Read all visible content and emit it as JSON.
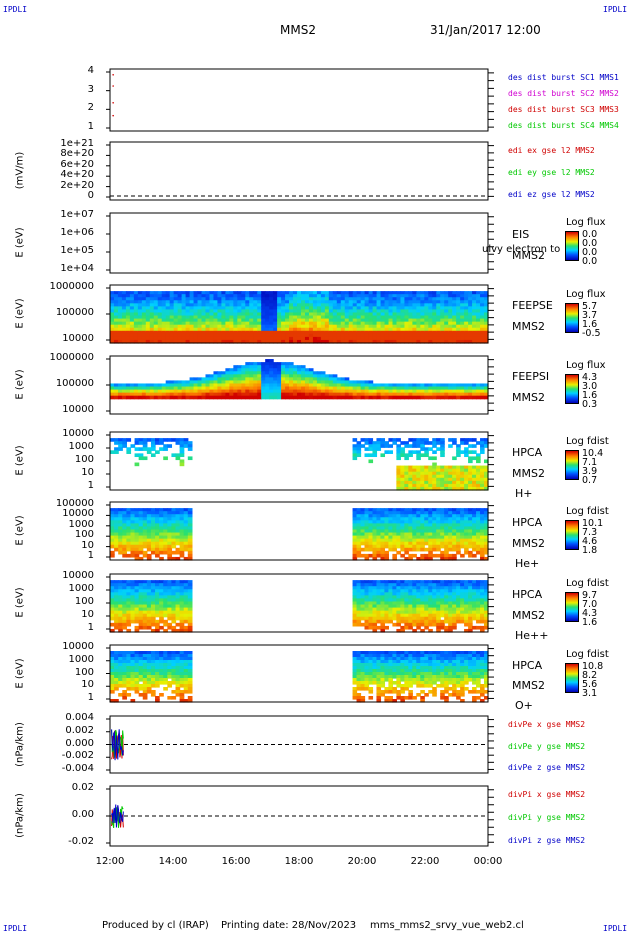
{
  "corners": {
    "tl": "IPDLI",
    "tr": "IPDLI",
    "bl": "IPDLI",
    "br": "IPDLI"
  },
  "header": {
    "mission": "MMS2",
    "datetime": "31/Jan/2017 12:00"
  },
  "x_axis": {
    "ticks": [
      "12:00",
      "14:00",
      "16:00",
      "18:00",
      "20:00",
      "22:00",
      "00:00"
    ]
  },
  "footer": {
    "produced": "Produced by cl (IRAP)",
    "printing": "Printing date: 28/Nov/2023",
    "script": "mms_mms2_srvy_vue_web2.cl"
  },
  "colors": {
    "red": "#d00000",
    "magenta": "#d000d0",
    "green": "#00c800",
    "blue": "#0000c8",
    "violet": "#6000c0"
  },
  "chart_data": [
    {
      "type": "scatter",
      "title": "",
      "ylabel": "",
      "ticks": [
        "4",
        "3",
        "2",
        "1"
      ],
      "legend": [
        {
          "name": "des dist burst SC1 MMS1",
          "color": "#0000c8"
        },
        {
          "name": "des dist burst SC2 MMS2",
          "color": "#d000d0"
        },
        {
          "name": "des dist burst SC3 MMS3",
          "color": "#d00000"
        },
        {
          "name": "des dist burst SC4 MMS4",
          "color": "#00c800"
        }
      ]
    },
    {
      "type": "line",
      "title": "",
      "ylabel": "(mV/m)",
      "ticks": [
        "1e+21",
        "8e+20",
        "6e+20",
        "4e+20",
        "2e+20",
        "0"
      ],
      "legend": [
        {
          "name": "edi ex gse l2 MMS2",
          "color": "#d00000"
        },
        {
          "name": "edi ey gse l2 MMS2",
          "color": "#00c800"
        },
        {
          "name": "edi ez gse l2 MMS2",
          "color": "#0000c8"
        }
      ]
    },
    {
      "type": "heatmap",
      "title": "",
      "ylabel": "E (eV)",
      "ticks": [
        "1e+07",
        "1e+06",
        "1e+05",
        "1e+04"
      ],
      "right_labels": [
        "EIS",
        "MMS2"
      ],
      "overlay_text": "ulvy electron to",
      "colorbar_title": "Log flux",
      "colorbar": [
        "0.0",
        "0.0",
        "0.0",
        "0.0"
      ]
    },
    {
      "type": "heatmap",
      "title": "",
      "ylabel": "E (eV)",
      "ticks": [
        "1000000",
        "100000",
        "10000"
      ],
      "right_labels": [
        "FEEPSE",
        "MMS2"
      ],
      "colorbar_title": "Log flux",
      "colorbar": [
        "5.7",
        "3.7",
        "1.6",
        "-0.5"
      ]
    },
    {
      "type": "heatmap",
      "title": "",
      "ylabel": "E (eV)",
      "ticks": [
        "1000000",
        "100000",
        "10000"
      ],
      "right_labels": [
        "FEEPSI",
        "MMS2"
      ],
      "colorbar_title": "Log flux",
      "colorbar": [
        "4.3",
        "3.0",
        "1.6",
        "0.3"
      ]
    },
    {
      "type": "heatmap",
      "title": "",
      "ylabel": "E (eV)",
      "ticks": [
        "10000",
        "1000",
        "100",
        "10",
        "1"
      ],
      "right_labels": [
        "HPCA",
        "MMS2",
        "H+"
      ],
      "colorbar_title": "Log fdist",
      "colorbar": [
        "10.4",
        "7.1",
        "3.9",
        "0.7"
      ]
    },
    {
      "type": "heatmap",
      "title": "",
      "ylabel": "E (eV)",
      "ticks": [
        "100000",
        "10000",
        "1000",
        "100",
        "10",
        "1"
      ],
      "right_labels": [
        "HPCA",
        "MMS2",
        "He+"
      ],
      "colorbar_title": "Log fdist",
      "colorbar": [
        "10.1",
        "7.3",
        "4.6",
        "1.8"
      ]
    },
    {
      "type": "heatmap",
      "title": "",
      "ylabel": "E (eV)",
      "ticks": [
        "10000",
        "1000",
        "100",
        "10",
        "1"
      ],
      "right_labels": [
        "HPCA",
        "MMS2",
        "He++"
      ],
      "colorbar_title": "Log fdist",
      "colorbar": [
        "9.7",
        "7.0",
        "4.3",
        "1.6"
      ]
    },
    {
      "type": "heatmap",
      "title": "",
      "ylabel": "E (eV)",
      "ticks": [
        "10000",
        "1000",
        "100",
        "10",
        "1"
      ],
      "right_labels": [
        "HPCA",
        "MMS2",
        "O+"
      ],
      "colorbar_title": "Log fdist",
      "colorbar": [
        "10.8",
        "8.2",
        "5.6",
        "3.1"
      ]
    },
    {
      "type": "line",
      "title": "",
      "ylabel": "(nPa/km)",
      "ticks": [
        "0.004",
        "0.002",
        "0.000",
        "-0.002",
        "-0.004"
      ],
      "legend": [
        {
          "name": "divPe x gse MMS2",
          "color": "#d00000"
        },
        {
          "name": "divPe y gse MMS2",
          "color": "#00c800"
        },
        {
          "name": "divPe z gse MMS2",
          "color": "#0000c8"
        }
      ]
    },
    {
      "type": "line",
      "title": "",
      "ylabel": "(nPa/km)",
      "ticks": [
        "0.02",
        "0.00",
        "-0.02"
      ],
      "legend": [
        {
          "name": "divPi x gse MMS2",
          "color": "#d00000"
        },
        {
          "name": "divPi y gse MMS2",
          "color": "#00c800"
        },
        {
          "name": "divPi z gse MMS2",
          "color": "#0000c8"
        }
      ]
    }
  ]
}
